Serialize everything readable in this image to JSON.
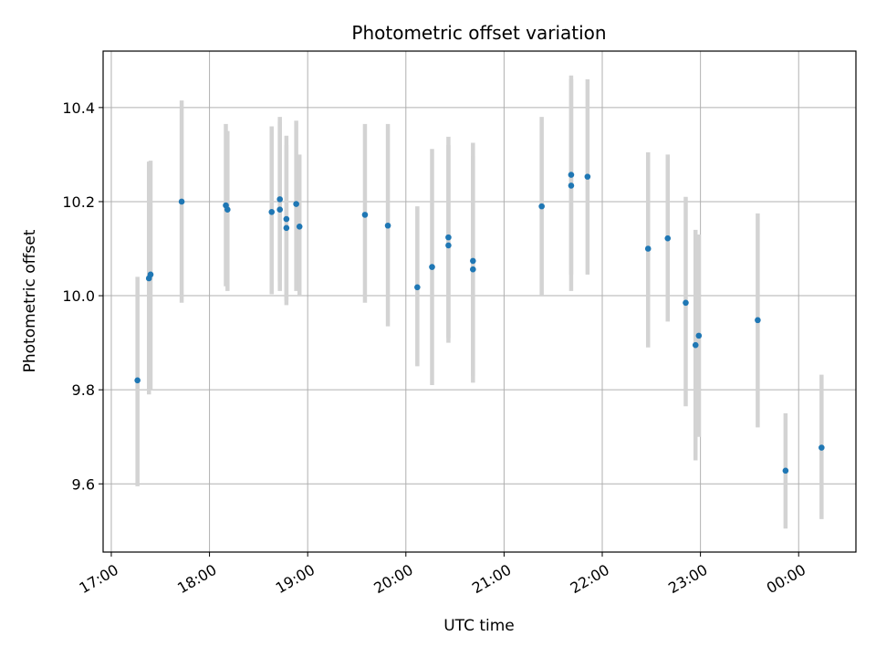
{
  "chart_data": {
    "type": "scatter",
    "title": "Photometric offset variation",
    "xlabel": "UTC time",
    "ylabel": "Photometric offset",
    "x_unit": "UTC time (HH:MM)",
    "xlim": [
      "16:55",
      "24:35"
    ],
    "ylim": [
      9.455,
      10.52
    ],
    "x_ticks": [
      {
        "t": "17:00",
        "label": "17:00"
      },
      {
        "t": "18:00",
        "label": "18:00"
      },
      {
        "t": "19:00",
        "label": "19:00"
      },
      {
        "t": "20:00",
        "label": "20:00"
      },
      {
        "t": "21:00",
        "label": "21:00"
      },
      {
        "t": "22:00",
        "label": "22:00"
      },
      {
        "t": "23:00",
        "label": "23:00"
      },
      {
        "t": "24:00",
        "label": "00:00"
      }
    ],
    "y_ticks": [
      9.6,
      9.8,
      10.0,
      10.2,
      10.4
    ],
    "y_tick_labels": [
      "9.6",
      "9.8",
      "10.0",
      "10.2",
      "10.4"
    ],
    "grid": true,
    "colors": {
      "point": "#1f77b4",
      "errorbar": "#d3d3d3",
      "grid": "#b0b0b0"
    },
    "points": [
      {
        "t": "17:16",
        "y": 9.82,
        "low": 9.595,
        "high": 10.04
      },
      {
        "t": "17:23",
        "y": 10.037,
        "low": 9.79,
        "high": 10.285
      },
      {
        "t": "17:24",
        "y": 10.045,
        "low": 9.8,
        "high": 10.287
      },
      {
        "t": "17:43",
        "y": 10.2,
        "low": 9.985,
        "high": 10.415
      },
      {
        "t": "18:10",
        "y": 10.192,
        "low": 10.02,
        "high": 10.365
      },
      {
        "t": "18:11",
        "y": 10.183,
        "low": 10.01,
        "high": 10.35
      },
      {
        "t": "18:38",
        "y": 10.178,
        "low": 10.003,
        "high": 10.36
      },
      {
        "t": "18:43",
        "y": 10.205,
        "low": 10.01,
        "high": 10.38
      },
      {
        "t": "18:43",
        "y": 10.183,
        "low": 10.03,
        "high": 10.37
      },
      {
        "t": "18:47",
        "y": 10.163,
        "low": 9.98,
        "high": 10.34
      },
      {
        "t": "18:47",
        "y": 10.144,
        "low": 9.99,
        "high": 10.32
      },
      {
        "t": "18:53",
        "y": 10.195,
        "low": 10.01,
        "high": 10.372
      },
      {
        "t": "18:55",
        "y": 10.147,
        "low": 10.0,
        "high": 10.3
      },
      {
        "t": "19:35",
        "y": 10.172,
        "low": 9.985,
        "high": 10.365
      },
      {
        "t": "19:49",
        "y": 10.149,
        "low": 9.935,
        "high": 10.365
      },
      {
        "t": "20:07",
        "y": 10.018,
        "low": 9.85,
        "high": 10.19
      },
      {
        "t": "20:16",
        "y": 10.061,
        "low": 9.81,
        "high": 10.312
      },
      {
        "t": "20:26",
        "y": 10.124,
        "low": 9.91,
        "high": 10.338
      },
      {
        "t": "20:26",
        "y": 10.107,
        "low": 9.9,
        "high": 10.32
      },
      {
        "t": "20:41",
        "y": 10.074,
        "low": 9.83,
        "high": 10.325
      },
      {
        "t": "20:41",
        "y": 10.056,
        "low": 9.815,
        "high": 10.297
      },
      {
        "t": "21:23",
        "y": 10.19,
        "low": 10.0,
        "high": 10.38
      },
      {
        "t": "21:41",
        "y": 10.257,
        "low": 10.045,
        "high": 10.468
      },
      {
        "t": "21:41",
        "y": 10.234,
        "low": 10.01,
        "high": 10.46
      },
      {
        "t": "21:51",
        "y": 10.253,
        "low": 10.045,
        "high": 10.46
      },
      {
        "t": "22:28",
        "y": 10.1,
        "low": 9.89,
        "high": 10.305
      },
      {
        "t": "22:40",
        "y": 10.122,
        "low": 9.945,
        "high": 10.3
      },
      {
        "t": "22:51",
        "y": 9.985,
        "low": 9.765,
        "high": 10.21
      },
      {
        "t": "22:57",
        "y": 9.895,
        "low": 9.65,
        "high": 10.14
      },
      {
        "t": "22:59",
        "y": 9.915,
        "low": 9.7,
        "high": 10.13
      },
      {
        "t": "23:35",
        "y": 9.948,
        "low": 9.72,
        "high": 10.175
      },
      {
        "t": "23:52",
        "y": 9.628,
        "low": 9.505,
        "high": 9.75
      },
      {
        "t": "24:14",
        "y": 9.677,
        "low": 9.525,
        "high": 9.832
      }
    ]
  }
}
